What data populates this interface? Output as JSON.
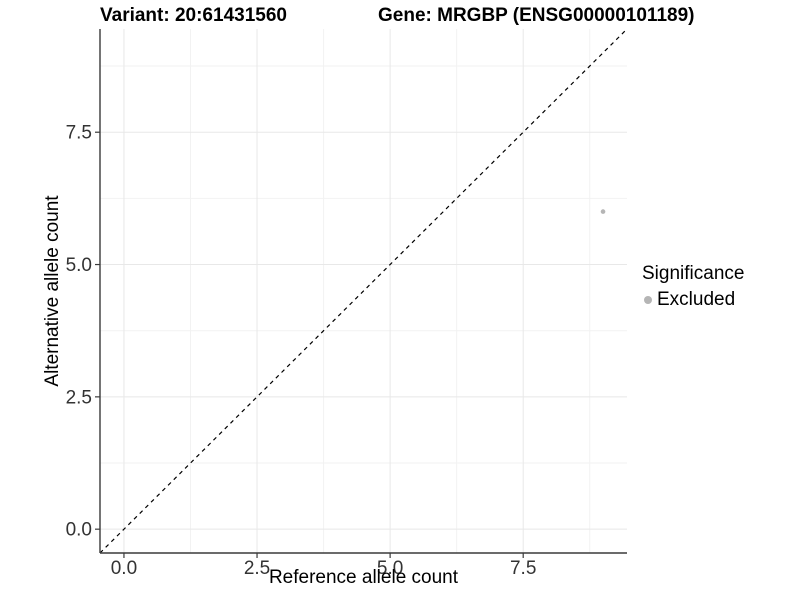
{
  "header": {
    "variant_title": "Variant: 20:61431560",
    "gene_title": "Gene: MRGBP (ENSG00000101189)"
  },
  "chart_data": {
    "type": "scatter",
    "xlabel": "Reference allele count",
    "ylabel": "Alternative allele count",
    "xlim": [
      -0.45,
      9.45
    ],
    "ylim": [
      -0.45,
      9.45
    ],
    "x_ticks": {
      "values": [
        0,
        2.5,
        5,
        7.5
      ],
      "labels": [
        "0.0",
        "2.5",
        "5.0",
        "7.5"
      ]
    },
    "y_ticks": {
      "values": [
        0,
        2.5,
        5,
        7.5
      ],
      "labels": [
        "0.0",
        "2.5",
        "5.0",
        "7.5"
      ]
    },
    "x_minor": [
      1.25,
      3.75,
      6.25,
      8.75
    ],
    "y_minor": [
      1.25,
      3.75,
      6.25,
      8.75
    ],
    "grid": "major+minor",
    "identity_line": {
      "slope": 1,
      "intercept": 0,
      "style": "dashed",
      "color": "#000000"
    },
    "series": [
      {
        "name": "Excluded",
        "color": "#b5b5b5",
        "points": [
          {
            "x": 9,
            "y": 6
          }
        ]
      }
    ],
    "legend": {
      "title": "Significance",
      "position": "right",
      "items": [
        {
          "label": "Excluded",
          "color": "#b5b5b5",
          "marker": "circle"
        }
      ]
    }
  },
  "style": {
    "background": "#ffffff",
    "grid_major_color": "#e8e8e8",
    "grid_minor_color": "#f2f2f2",
    "axis_color": "#3a3a3a",
    "tick_label_color": "#333333",
    "text_color": "#000000",
    "point_color": "#b5b5b5"
  }
}
